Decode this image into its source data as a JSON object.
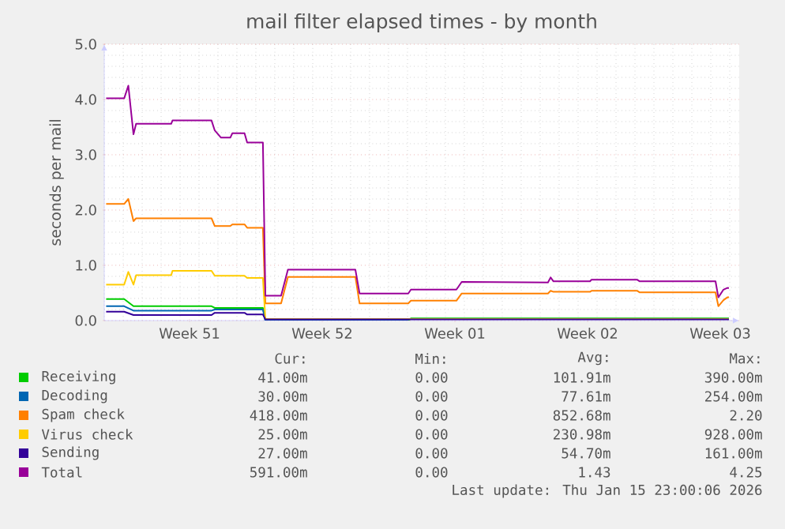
{
  "chart_data": {
    "type": "line",
    "title": "mail filter elapsed times - by month",
    "ylabel": "seconds per mail",
    "xlim": [
      "2025-12-14T00:00",
      "2026-01-16T12:00"
    ],
    "xticks": [
      {
        "value": "2025-12-18T12:00",
        "label": "Week 51"
      },
      {
        "value": "2025-12-25T12:00",
        "label": "Week 52"
      },
      {
        "value": "2026-01-01T12:00",
        "label": "Week 01"
      },
      {
        "value": "2026-01-08T12:00",
        "label": "Week 02"
      },
      {
        "value": "2026-01-15T12:00",
        "label": "Week 03"
      }
    ],
    "ylim": [
      0,
      5
    ],
    "yticks": [
      {
        "value": 0,
        "label": "0.0"
      },
      {
        "value": 1,
        "label": "1.0"
      },
      {
        "value": 2,
        "label": "2.0"
      },
      {
        "value": 3,
        "label": "3.0"
      },
      {
        "value": 4,
        "label": "4.0"
      },
      {
        "value": 5,
        "label": "5.0"
      }
    ],
    "grid": true,
    "legend": "bottom",
    "series": [
      {
        "name": "Receiving",
        "color": "#00cc00",
        "x": [
          "2025-12-14T02:24",
          "2025-12-15T01:12",
          "2025-12-15T13:00",
          "2025-12-19T15:50",
          "2025-12-19T19:55",
          "2025-12-22T08:53",
          "2025-12-22T12:00",
          "2025-12-30T00:58",
          "2025-12-30T04:19",
          "2026-01-15T23:00"
        ],
        "values": [
          0.39,
          0.39,
          0.26,
          0.26,
          0.23,
          0.23,
          0.0,
          0.0,
          0.04,
          0.04
        ]
      },
      {
        "name": "Decoding",
        "color": "#0066b3",
        "x": [
          "2025-12-14T02:24",
          "2025-12-15T01:12",
          "2025-12-15T13:00",
          "2025-12-19T15:50",
          "2025-12-19T19:55",
          "2025-12-22T08:53",
          "2025-12-22T12:00",
          "2025-12-30T00:58"
        ],
        "values": [
          0.26,
          0.26,
          0.18,
          0.18,
          0.2,
          0.2,
          0.0,
          0.0
        ]
      },
      {
        "name": "Spam check",
        "color": "#ff8000",
        "x": [
          "2025-12-14T02:24",
          "2025-12-15T01:12",
          "2025-12-15T06:30",
          "2025-12-15T13:00",
          "2025-12-15T16:20",
          "2025-12-19T15:50",
          "2025-12-19T19:55",
          "2025-12-20T15:36",
          "2025-12-20T18:14",
          "2025-12-21T09:36",
          "2025-12-21T12:58",
          "2025-12-22T08:53",
          "2025-12-22T12:00",
          "2025-12-23T07:55",
          "2025-12-23T16:34",
          "2025-12-27T06:00",
          "2025-12-27T11:17",
          "2025-12-30T00:58",
          "2025-12-30T04:19",
          "2026-01-01T13:55",
          "2026-01-01T20:38",
          "2026-01-06T09:50",
          "2026-01-06T13:12",
          "2026-01-06T16:48",
          "2026-01-08T15:07",
          "2026-01-08T17:02",
          "2026-01-11T02:38",
          "2026-01-11T06:00",
          "2026-01-15T06:00",
          "2026-01-15T09:36",
          "2026-01-15T16:05",
          "2026-01-15T21:00",
          "2026-01-15T23:00"
        ],
        "values": [
          2.11,
          2.11,
          2.2,
          1.8,
          1.85,
          1.85,
          1.71,
          1.71,
          1.74,
          1.74,
          1.68,
          1.68,
          0.31,
          0.31,
          0.79,
          0.79,
          0.31,
          0.31,
          0.36,
          0.36,
          0.49,
          0.49,
          0.54,
          0.52,
          0.52,
          0.54,
          0.54,
          0.51,
          0.51,
          0.26,
          0.37,
          0.42,
          0.42
        ]
      },
      {
        "name": "Virus check",
        "color": "#ffcc00",
        "x": [
          "2025-12-14T02:24",
          "2025-12-15T01:12",
          "2025-12-15T06:30",
          "2025-12-15T13:00",
          "2025-12-15T16:20",
          "2025-12-17T12:45",
          "2025-12-17T14:24",
          "2025-12-19T15:50",
          "2025-12-19T19:55",
          "2025-12-21T09:36",
          "2025-12-21T12:58",
          "2025-12-22T08:53",
          "2025-12-22T12:00",
          "2026-01-15T23:00"
        ],
        "values": [
          0.65,
          0.65,
          0.88,
          0.65,
          0.82,
          0.82,
          0.9,
          0.9,
          0.81,
          0.81,
          0.77,
          0.77,
          0.03,
          0.03
        ]
      },
      {
        "name": "Sending",
        "color": "#330099",
        "x": [
          "2025-12-14T02:24",
          "2025-12-15T01:12",
          "2025-12-15T13:00",
          "2025-12-19T15:50",
          "2025-12-19T19:55",
          "2025-12-21T09:36",
          "2025-12-21T12:58",
          "2025-12-22T08:53",
          "2025-12-22T12:00",
          "2026-01-15T23:00"
        ],
        "values": [
          0.16,
          0.16,
          0.1,
          0.1,
          0.14,
          0.14,
          0.11,
          0.11,
          0.02,
          0.02
        ]
      },
      {
        "name": "Total",
        "color": "#990099",
        "x": [
          "2025-12-14T02:24",
          "2025-12-15T01:12",
          "2025-12-15T06:30",
          "2025-12-15T13:00",
          "2025-12-15T16:20",
          "2025-12-17T12:45",
          "2025-12-17T14:24",
          "2025-12-19T15:50",
          "2025-12-19T19:55",
          "2025-12-20T03:50",
          "2025-12-20T15:36",
          "2025-12-20T18:14",
          "2025-12-21T09:36",
          "2025-12-21T12:58",
          "2025-12-22T08:53",
          "2025-12-22T12:00",
          "2025-12-23T07:55",
          "2025-12-23T16:34",
          "2025-12-27T06:00",
          "2025-12-27T11:17",
          "2025-12-30T00:58",
          "2025-12-30T04:19",
          "2026-01-01T13:55",
          "2026-01-01T20:38",
          "2026-01-06T09:50",
          "2026-01-06T13:12",
          "2026-01-06T16:48",
          "2026-01-08T15:07",
          "2026-01-08T17:02",
          "2026-01-11T02:38",
          "2026-01-11T06:00",
          "2026-01-15T06:00",
          "2026-01-15T09:36",
          "2026-01-15T16:05",
          "2026-01-15T21:00",
          "2026-01-15T23:00"
        ],
        "values": [
          4.02,
          4.02,
          4.25,
          3.37,
          3.56,
          3.56,
          3.62,
          3.62,
          3.44,
          3.31,
          3.31,
          3.39,
          3.39,
          3.22,
          3.22,
          0.45,
          0.45,
          0.92,
          0.92,
          0.49,
          0.49,
          0.56,
          0.56,
          0.7,
          0.69,
          0.78,
          0.71,
          0.71,
          0.74,
          0.74,
          0.71,
          0.71,
          0.42,
          0.56,
          0.59,
          0.59
        ]
      }
    ],
    "annotations": [
      "Cur:",
      "Min:",
      "Avg:",
      "Max:",
      "41.00m",
      "0.00",
      "101.91m",
      "390.00m",
      "30.00m",
      "0.00",
      "77.61m",
      "254.00m",
      "418.00m",
      "0.00",
      "852.68m",
      "2.20",
      "25.00m",
      "0.00",
      "230.98m",
      "928.00m",
      "27.00m",
      "0.00",
      "54.70m",
      "161.00m",
      "591.00m",
      "0.00",
      "1.43",
      "4.25",
      "Last update: Thu Jan 15 23:00:06 2026"
    ]
  }
}
